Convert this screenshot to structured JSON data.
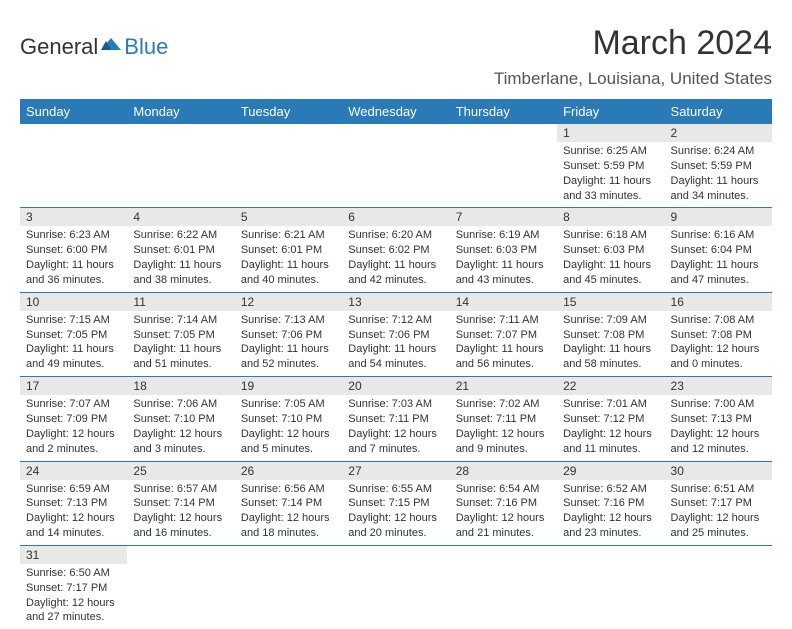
{
  "logo": {
    "general": "General",
    "blue": "Blue"
  },
  "title": "March 2024",
  "location": "Timberlane, Louisiana, United States",
  "columns": [
    "Sunday",
    "Monday",
    "Tuesday",
    "Wednesday",
    "Thursday",
    "Friday",
    "Saturday"
  ],
  "colors": {
    "header_bg": "#2a7ab8",
    "header_fg": "#ffffff",
    "daynum_bg": "#e8e8e8",
    "row_divider": "#2a7ab8",
    "text": "#333333",
    "logo_blue": "#2a7ab8"
  },
  "weeks": [
    [
      null,
      null,
      null,
      null,
      null,
      {
        "n": "1",
        "sr": "6:25 AM",
        "ss": "5:59 PM",
        "dl": "11 hours and 33 minutes."
      },
      {
        "n": "2",
        "sr": "6:24 AM",
        "ss": "5:59 PM",
        "dl": "11 hours and 34 minutes."
      }
    ],
    [
      {
        "n": "3",
        "sr": "6:23 AM",
        "ss": "6:00 PM",
        "dl": "11 hours and 36 minutes."
      },
      {
        "n": "4",
        "sr": "6:22 AM",
        "ss": "6:01 PM",
        "dl": "11 hours and 38 minutes."
      },
      {
        "n": "5",
        "sr": "6:21 AM",
        "ss": "6:01 PM",
        "dl": "11 hours and 40 minutes."
      },
      {
        "n": "6",
        "sr": "6:20 AM",
        "ss": "6:02 PM",
        "dl": "11 hours and 42 minutes."
      },
      {
        "n": "7",
        "sr": "6:19 AM",
        "ss": "6:03 PM",
        "dl": "11 hours and 43 minutes."
      },
      {
        "n": "8",
        "sr": "6:18 AM",
        "ss": "6:03 PM",
        "dl": "11 hours and 45 minutes."
      },
      {
        "n": "9",
        "sr": "6:16 AM",
        "ss": "6:04 PM",
        "dl": "11 hours and 47 minutes."
      }
    ],
    [
      {
        "n": "10",
        "sr": "7:15 AM",
        "ss": "7:05 PM",
        "dl": "11 hours and 49 minutes."
      },
      {
        "n": "11",
        "sr": "7:14 AM",
        "ss": "7:05 PM",
        "dl": "11 hours and 51 minutes."
      },
      {
        "n": "12",
        "sr": "7:13 AM",
        "ss": "7:06 PM",
        "dl": "11 hours and 52 minutes."
      },
      {
        "n": "13",
        "sr": "7:12 AM",
        "ss": "7:06 PM",
        "dl": "11 hours and 54 minutes."
      },
      {
        "n": "14",
        "sr": "7:11 AM",
        "ss": "7:07 PM",
        "dl": "11 hours and 56 minutes."
      },
      {
        "n": "15",
        "sr": "7:09 AM",
        "ss": "7:08 PM",
        "dl": "11 hours and 58 minutes."
      },
      {
        "n": "16",
        "sr": "7:08 AM",
        "ss": "7:08 PM",
        "dl": "12 hours and 0 minutes."
      }
    ],
    [
      {
        "n": "17",
        "sr": "7:07 AM",
        "ss": "7:09 PM",
        "dl": "12 hours and 2 minutes."
      },
      {
        "n": "18",
        "sr": "7:06 AM",
        "ss": "7:10 PM",
        "dl": "12 hours and 3 minutes."
      },
      {
        "n": "19",
        "sr": "7:05 AM",
        "ss": "7:10 PM",
        "dl": "12 hours and 5 minutes."
      },
      {
        "n": "20",
        "sr": "7:03 AM",
        "ss": "7:11 PM",
        "dl": "12 hours and 7 minutes."
      },
      {
        "n": "21",
        "sr": "7:02 AM",
        "ss": "7:11 PM",
        "dl": "12 hours and 9 minutes."
      },
      {
        "n": "22",
        "sr": "7:01 AM",
        "ss": "7:12 PM",
        "dl": "12 hours and 11 minutes."
      },
      {
        "n": "23",
        "sr": "7:00 AM",
        "ss": "7:13 PM",
        "dl": "12 hours and 12 minutes."
      }
    ],
    [
      {
        "n": "24",
        "sr": "6:59 AM",
        "ss": "7:13 PM",
        "dl": "12 hours and 14 minutes."
      },
      {
        "n": "25",
        "sr": "6:57 AM",
        "ss": "7:14 PM",
        "dl": "12 hours and 16 minutes."
      },
      {
        "n": "26",
        "sr": "6:56 AM",
        "ss": "7:14 PM",
        "dl": "12 hours and 18 minutes."
      },
      {
        "n": "27",
        "sr": "6:55 AM",
        "ss": "7:15 PM",
        "dl": "12 hours and 20 minutes."
      },
      {
        "n": "28",
        "sr": "6:54 AM",
        "ss": "7:16 PM",
        "dl": "12 hours and 21 minutes."
      },
      {
        "n": "29",
        "sr": "6:52 AM",
        "ss": "7:16 PM",
        "dl": "12 hours and 23 minutes."
      },
      {
        "n": "30",
        "sr": "6:51 AM",
        "ss": "7:17 PM",
        "dl": "12 hours and 25 minutes."
      }
    ],
    [
      {
        "n": "31",
        "sr": "6:50 AM",
        "ss": "7:17 PM",
        "dl": "12 hours and 27 minutes."
      },
      null,
      null,
      null,
      null,
      null,
      null
    ]
  ],
  "labels": {
    "sunrise": "Sunrise:",
    "sunset": "Sunset:",
    "daylight": "Daylight:"
  }
}
